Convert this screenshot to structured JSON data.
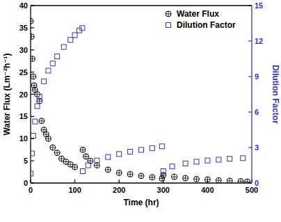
{
  "chart_data": {
    "type": "scatter",
    "x_label": "Time (hr)",
    "y_label": "Water Flux (Lm⁻²h⁻¹)",
    "y2_label": "Dilution Factor",
    "xlim": [
      0,
      500
    ],
    "xticks": [
      0,
      100,
      200,
      300,
      400,
      500
    ],
    "ylim": [
      0,
      40
    ],
    "yticks": [
      0,
      5,
      10,
      15,
      20,
      25,
      30,
      35,
      40
    ],
    "y2lim": [
      0,
      15
    ],
    "y2ticks": [
      0,
      3,
      6,
      9,
      12,
      15
    ],
    "legend": "top-right",
    "series": [
      {
        "name": "Water Flux",
        "color": "#000000",
        "marker": "circle-cross",
        "x": [
          0,
          2,
          4,
          6,
          8,
          10,
          15,
          20,
          25,
          30,
          35,
          40,
          50,
          60,
          70,
          80,
          90,
          100,
          118,
          125,
          135,
          150,
          175,
          200,
          225,
          250,
          275,
          297,
          300,
          325,
          350,
          375,
          400,
          425,
          450,
          475,
          490
        ],
        "values": [
          36.5,
          33,
          28,
          24,
          22,
          21,
          20,
          18.5,
          14,
          12,
          11,
          10,
          8,
          6.8,
          5.5,
          4.8,
          4.2,
          3.6,
          7.5,
          6,
          5,
          4,
          3,
          2.3,
          2,
          1.6,
          1.3,
          1.0,
          1.8,
          1.4,
          1.1,
          0.9,
          0.8,
          0.6,
          0.5,
          0.4,
          0.3
        ]
      },
      {
        "name": "Dilution Factor",
        "color": "#3333cc",
        "marker": "square",
        "axis": "y2",
        "x": [
          0,
          3,
          6,
          10,
          15,
          20,
          30,
          40,
          50,
          60,
          75,
          90,
          100,
          110,
          117,
          118,
          130,
          150,
          175,
          200,
          225,
          250,
          275,
          297,
          300,
          320,
          350,
          375,
          400,
          425,
          450,
          480
        ],
        "values": [
          0.8,
          2.5,
          4,
          5.2,
          6.5,
          7.3,
          8.6,
          9.5,
          10.1,
          10.7,
          11.5,
          12.1,
          12.5,
          12.9,
          13.1,
          1.0,
          1.5,
          1.9,
          2.2,
          2.45,
          2.65,
          2.8,
          2.95,
          3.1,
          1.0,
          1.4,
          1.65,
          1.8,
          1.9,
          1.97,
          2.05,
          2.1
        ]
      }
    ]
  }
}
